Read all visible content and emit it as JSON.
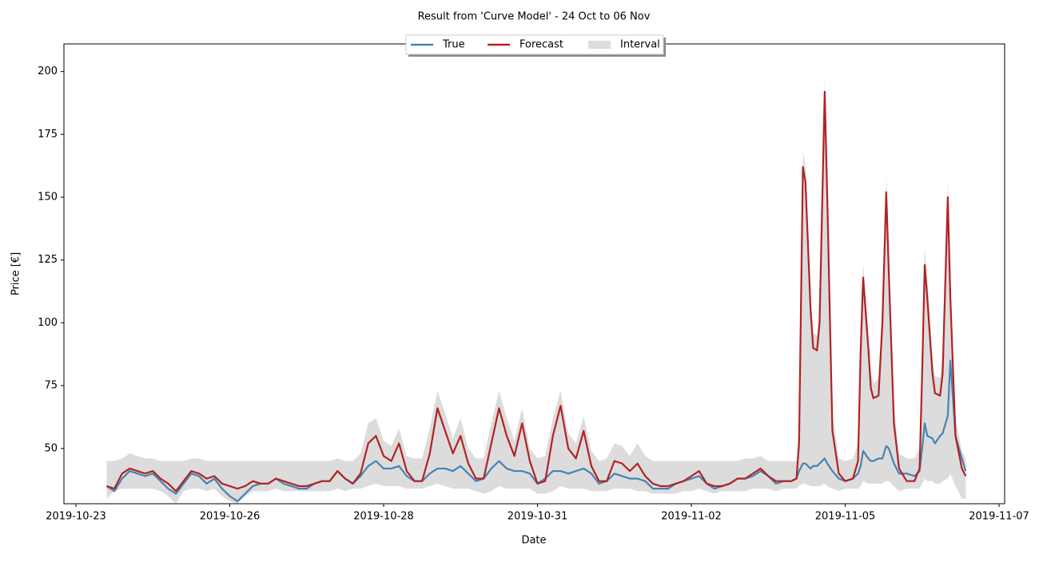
{
  "chart_data": {
    "type": "line",
    "title": "Result from 'Curve Model' - 24 Oct to 06 Nov",
    "xlabel": "Date",
    "ylabel": "Price [€]",
    "xlim": [
      "2019-10-23 07:20",
      "2019-11-07 14:10"
    ],
    "xticks": [
      {
        "value": "2019-10-23 12:00",
        "label": "2019-10-23"
      },
      {
        "value": "2019-10-26 00:00",
        "label": "2019-10-26"
      },
      {
        "value": "2019-10-28 12:00",
        "label": "2019-10-28"
      },
      {
        "value": "2019-10-31 00:00",
        "label": "2019-10-31"
      },
      {
        "value": "2019-11-02 12:00",
        "label": "2019-11-02"
      },
      {
        "value": "2019-11-05 00:00",
        "label": "2019-11-05"
      },
      {
        "value": "2019-11-07 12:00",
        "label": "2019-11-07"
      }
    ],
    "ylim": [
      28,
      211
    ],
    "yticks": [
      50,
      75,
      100,
      125,
      150,
      175,
      200
    ],
    "legend": "upper center",
    "x": [
      "2019-10-24 00:00",
      "2019-10-24 03:00",
      "2019-10-24 06:00",
      "2019-10-24 09:00",
      "2019-10-24 12:00",
      "2019-10-24 15:00",
      "2019-10-24 18:00",
      "2019-10-24 21:00",
      "2019-10-25 00:00",
      "2019-10-25 03:00",
      "2019-10-25 06:00",
      "2019-10-25 09:00",
      "2019-10-25 12:00",
      "2019-10-25 15:00",
      "2019-10-25 18:00",
      "2019-10-25 21:00",
      "2019-10-26 00:00",
      "2019-10-26 03:00",
      "2019-10-26 06:00",
      "2019-10-26 09:00",
      "2019-10-26 12:00",
      "2019-10-26 15:00",
      "2019-10-26 18:00",
      "2019-10-26 21:00",
      "2019-10-27 00:00",
      "2019-10-27 03:00",
      "2019-10-27 06:00",
      "2019-10-27 09:00",
      "2019-10-27 12:00",
      "2019-10-27 15:00",
      "2019-10-27 18:00",
      "2019-10-27 21:00",
      "2019-10-28 00:00",
      "2019-10-28 03:00",
      "2019-10-28 06:00",
      "2019-10-28 09:00",
      "2019-10-28 12:00",
      "2019-10-28 15:00",
      "2019-10-28 18:00",
      "2019-10-28 21:00",
      "2019-10-29 00:00",
      "2019-10-29 03:00",
      "2019-10-29 06:00",
      "2019-10-29 09:00",
      "2019-10-29 12:00",
      "2019-10-29 15:00",
      "2019-10-29 18:00",
      "2019-10-29 21:00",
      "2019-10-30 00:00",
      "2019-10-30 03:00",
      "2019-10-30 06:00",
      "2019-10-30 09:00",
      "2019-10-30 12:00",
      "2019-10-30 15:00",
      "2019-10-30 18:00",
      "2019-10-30 21:00",
      "2019-10-31 00:00",
      "2019-10-31 03:00",
      "2019-10-31 06:00",
      "2019-10-31 09:00",
      "2019-10-31 12:00",
      "2019-10-31 15:00",
      "2019-10-31 18:00",
      "2019-10-31 21:00",
      "2019-11-01 00:00",
      "2019-11-01 03:00",
      "2019-11-01 06:00",
      "2019-11-01 09:00",
      "2019-11-01 12:00",
      "2019-11-01 15:00",
      "2019-11-01 18:00",
      "2019-11-01 21:00",
      "2019-11-02 00:00",
      "2019-11-02 03:00",
      "2019-11-02 06:00",
      "2019-11-02 09:00",
      "2019-11-02 12:00",
      "2019-11-02 15:00",
      "2019-11-02 18:00",
      "2019-11-02 21:00",
      "2019-11-03 00:00",
      "2019-11-03 03:00",
      "2019-11-03 06:00",
      "2019-11-03 09:00",
      "2019-11-03 12:00",
      "2019-11-03 15:00",
      "2019-11-03 18:00",
      "2019-11-03 21:00",
      "2019-11-04 00:00",
      "2019-11-04 03:00",
      "2019-11-04 05:00",
      "2019-11-04 06:00",
      "2019-11-04 07:30",
      "2019-11-04 08:30",
      "2019-11-04 10:30",
      "2019-11-04 11:30",
      "2019-11-04 13:00",
      "2019-11-04 14:00",
      "2019-11-04 16:00",
      "2019-11-04 17:00",
      "2019-11-04 19:00",
      "2019-11-04 21:30",
      "2019-11-05 00:00",
      "2019-11-05 03:00",
      "2019-11-05 05:00",
      "2019-11-05 06:00",
      "2019-11-05 07:00",
      "2019-11-05 09:00",
      "2019-11-05 10:00",
      "2019-11-05 11:00",
      "2019-11-05 13:00",
      "2019-11-05 14:30",
      "2019-11-05 16:00",
      "2019-11-05 17:00",
      "2019-11-05 19:00",
      "2019-11-05 21:00",
      "2019-11-06 00:00",
      "2019-11-06 03:00",
      "2019-11-06 05:00",
      "2019-11-06 06:00",
      "2019-11-06 07:00",
      "2019-11-06 08:00",
      "2019-11-06 10:00",
      "2019-11-06 11:00",
      "2019-11-06 13:00",
      "2019-11-06 14:00",
      "2019-11-06 16:00",
      "2019-11-06 17:00",
      "2019-11-06 19:00",
      "2019-11-06 21:30",
      "2019-11-06 23:00"
    ],
    "series": [
      {
        "name": "True",
        "color": "#4682b4",
        "values": [
          35,
          33,
          38,
          41,
          40,
          39,
          40,
          37,
          34,
          32,
          36,
          40,
          39,
          36,
          38,
          34,
          31,
          29,
          32,
          35,
          36,
          36,
          38,
          36,
          35,
          34,
          34,
          36,
          37,
          37,
          41,
          38,
          36,
          39,
          43,
          45,
          42,
          42,
          43,
          39,
          37,
          37,
          40,
          42,
          42,
          41,
          43,
          40,
          37,
          38,
          42,
          45,
          42,
          41,
          41,
          40,
          36,
          38,
          41,
          41,
          40,
          41,
          42,
          40,
          36,
          37,
          40,
          39,
          38,
          38,
          37,
          34,
          34,
          34,
          36,
          37,
          38,
          39,
          36,
          34,
          35,
          36,
          38,
          38,
          39,
          41,
          39,
          36,
          37,
          37,
          38,
          41,
          44,
          44,
          42,
          43,
          43,
          44,
          46,
          44,
          41,
          38,
          37,
          38,
          40,
          43,
          49,
          46,
          45,
          45,
          46,
          46,
          51,
          50,
          44,
          40,
          40,
          39,
          41,
          50,
          60,
          55,
          54,
          52,
          55,
          56,
          63,
          85,
          55,
          46,
          41
        ]
      },
      {
        "name": "Forecast",
        "color": "#b22222",
        "values": [
          35,
          34,
          40,
          42,
          41,
          40,
          41,
          38,
          36,
          33,
          37,
          41,
          40,
          38,
          39,
          36,
          35,
          34,
          35,
          37,
          36,
          36,
          38,
          37,
          36,
          35,
          35,
          36,
          37,
          37,
          41,
          38,
          36,
          40,
          52,
          55,
          47,
          45,
          52,
          41,
          37,
          37,
          48,
          66,
          57,
          48,
          55,
          44,
          38,
          38,
          52,
          66,
          55,
          47,
          60,
          45,
          36,
          37,
          55,
          67,
          50,
          46,
          57,
          43,
          37,
          37,
          45,
          44,
          41,
          44,
          39,
          36,
          35,
          35,
          36,
          37,
          39,
          41,
          36,
          35,
          35,
          36,
          38,
          38,
          40,
          42,
          39,
          37,
          37,
          37,
          38,
          52,
          162,
          156,
          105,
          90,
          89,
          100,
          192,
          150,
          57,
          40,
          37,
          38,
          45,
          88,
          118,
          90,
          74,
          70,
          71,
          100,
          152,
          120,
          60,
          42,
          37,
          37,
          42,
          80,
          123,
          110,
          80,
          72,
          71,
          80,
          150,
          110,
          55,
          42,
          39
        ]
      },
      {
        "name": "Interval",
        "color": "#dcdcdc",
        "lower": [
          30,
          33,
          34,
          34,
          34,
          34,
          34,
          33,
          31,
          28,
          33,
          34,
          34,
          33,
          34,
          31,
          29,
          28,
          31,
          33,
          33,
          33,
          34,
          33,
          33,
          33,
          33,
          33,
          33,
          33,
          34,
          33,
          34,
          34,
          35,
          36,
          35,
          35,
          35,
          34,
          34,
          34,
          35,
          36,
          35,
          34,
          34,
          34,
          33,
          32,
          33,
          35,
          34,
          34,
          34,
          34,
          32,
          32,
          33,
          35,
          34,
          34,
          34,
          33,
          33,
          33,
          34,
          34,
          34,
          33,
          33,
          32,
          32,
          32,
          32,
          33,
          33,
          34,
          33,
          32,
          33,
          33,
          33,
          33,
          34,
          34,
          34,
          33,
          34,
          34,
          34,
          35,
          36,
          36,
          35,
          35,
          35,
          35,
          36,
          35,
          34,
          33,
          34,
          34,
          34,
          35,
          37,
          36,
          36,
          36,
          36,
          36,
          37,
          37,
          35,
          33,
          34,
          34,
          34,
          36,
          38,
          37,
          37,
          36,
          36,
          37,
          38,
          40,
          35,
          30,
          30
        ],
        "upper": [
          45,
          45,
          46,
          48,
          47,
          46,
          46,
          45,
          45,
          45,
          45,
          46,
          46,
          45,
          45,
          45,
          45,
          45,
          45,
          45,
          45,
          45,
          45,
          45,
          45,
          45,
          45,
          45,
          45,
          45,
          46,
          45,
          45,
          48,
          60,
          62,
          53,
          51,
          58,
          47,
          46,
          46,
          58,
          73,
          64,
          54,
          62,
          50,
          46,
          46,
          60,
          73,
          62,
          53,
          66,
          50,
          46,
          47,
          62,
          73,
          56,
          52,
          63,
          49,
          45,
          46,
          52,
          51,
          47,
          52,
          47,
          45,
          45,
          45,
          45,
          45,
          45,
          45,
          45,
          45,
          45,
          45,
          45,
          46,
          46,
          47,
          45,
          45,
          45,
          45,
          45,
          60,
          168,
          163,
          112,
          96,
          95,
          107,
          198,
          157,
          64,
          46,
          45,
          46,
          52,
          95,
          124,
          97,
          80,
          76,
          78,
          108,
          158,
          127,
          66,
          48,
          46,
          46,
          50,
          88,
          130,
          118,
          87,
          79,
          78,
          88,
          157,
          118,
          62,
          49,
          46
        ]
      }
    ]
  }
}
